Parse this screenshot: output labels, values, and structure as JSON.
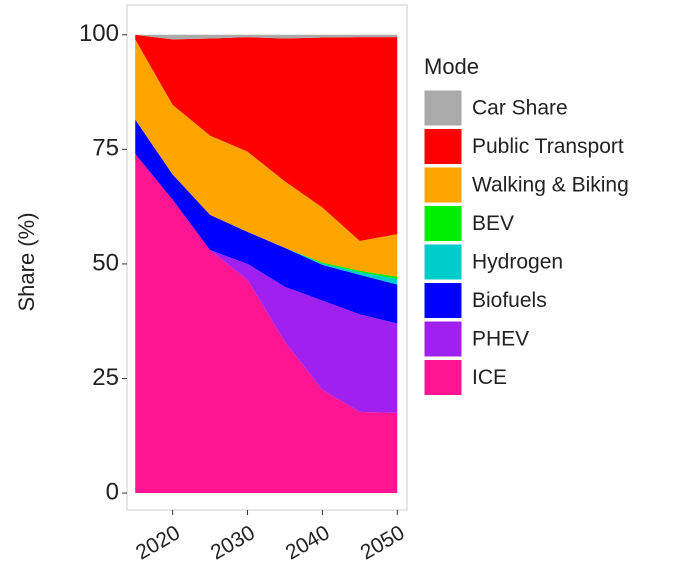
{
  "chart_data": {
    "type": "stacked_area",
    "y_label": "Share (%)",
    "legend_title": "Mode",
    "x": [
      2015,
      2020,
      2025,
      2030,
      2035,
      2040,
      2045,
      2050
    ],
    "series": [
      {
        "name": "Car Share",
        "color": "#aaaaaa",
        "values": [
          0,
          1,
          0.8,
          0.5,
          0.8,
          0.6,
          0.5,
          0.5
        ]
      },
      {
        "name": "Public Transport",
        "color": "#ff0000",
        "values": [
          1,
          14.3,
          21.2,
          25,
          31.2,
          37.1,
          44.5,
          43
        ]
      },
      {
        "name": "Walking & Biking",
        "color": "#ffa500",
        "values": [
          17.5,
          15.2,
          17.3,
          17.5,
          14.5,
          12,
          6.5,
          9.3
        ]
      },
      {
        "name": "BEV",
        "color": "#00ee00",
        "values": [
          0,
          0,
          0,
          0,
          0,
          0.2,
          0.3,
          0.5
        ]
      },
      {
        "name": "Hydrogen",
        "color": "#00cccc",
        "values": [
          0,
          0,
          0,
          0,
          0,
          0.3,
          0.6,
          1.2
        ]
      },
      {
        "name": "Biofuels",
        "color": "#0000ff",
        "values": [
          7.5,
          5.5,
          7.7,
          7,
          8.5,
          7.8,
          8.6,
          8.5
        ]
      },
      {
        "name": "PHEV",
        "color": "#a020f0",
        "values": [
          0,
          0,
          0,
          3.5,
          12,
          19.5,
          21.3,
          19.5
        ]
      },
      {
        "name": "ICE",
        "color": "#ff1493",
        "values": [
          74,
          64,
          53,
          46.5,
          33,
          22.5,
          17.7,
          17.5
        ]
      }
    ],
    "xlim": [
      2013.9,
      2051.3
    ],
    "ylim": [
      -3.7,
      106.5
    ],
    "xticks": [
      2020,
      2030,
      2040,
      2050
    ],
    "yticks": [
      0,
      25,
      50,
      75,
      100
    ]
  }
}
